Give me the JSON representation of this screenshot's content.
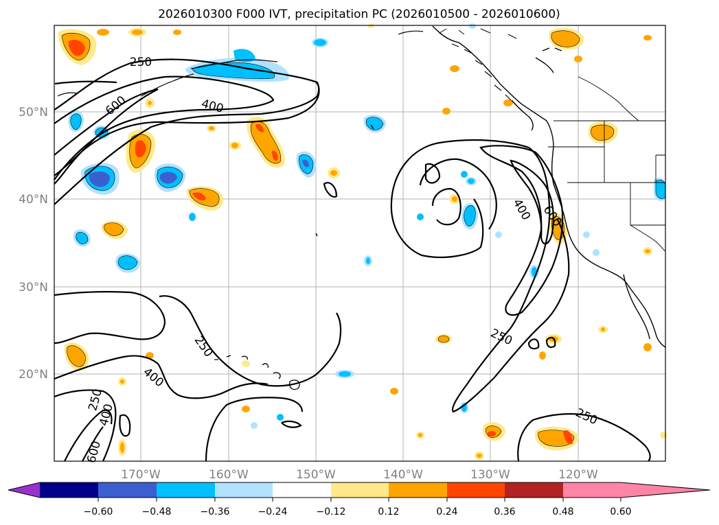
{
  "title": "2026010300 F000 IVT, precipitation PC (2026010500 - 2026010600)",
  "lat_ticks": [
    "50°N",
    "40°N",
    "30°N",
    "20°N"
  ],
  "lon_ticks": [
    "170°W",
    "160°W",
    "150°W",
    "140°W",
    "130°W",
    "120°W"
  ],
  "ivt_contour_labels": [
    "250",
    "600",
    "400",
    "400",
    "600",
    "250",
    "250",
    "400",
    "250",
    "400",
    "600"
  ],
  "colorbar": {
    "ticks": [
      "−0.60",
      "−0.48",
      "−0.36",
      "−0.24",
      "−0.12",
      "0.12",
      "0.24",
      "0.36",
      "0.48",
      "0.60"
    ],
    "colors": [
      "#9932cc",
      "#00008b",
      "#3b5fcf",
      "#00bfff",
      "#b0e2ff",
      "#ffffff",
      "#ffe98a",
      "#ffa500",
      "#ff4500",
      "#b22222",
      "#ff85a6"
    ]
  },
  "colors": {
    "land_outline": "#000000",
    "grid": "#b0b0b0",
    "tick_label": "#808080"
  }
}
